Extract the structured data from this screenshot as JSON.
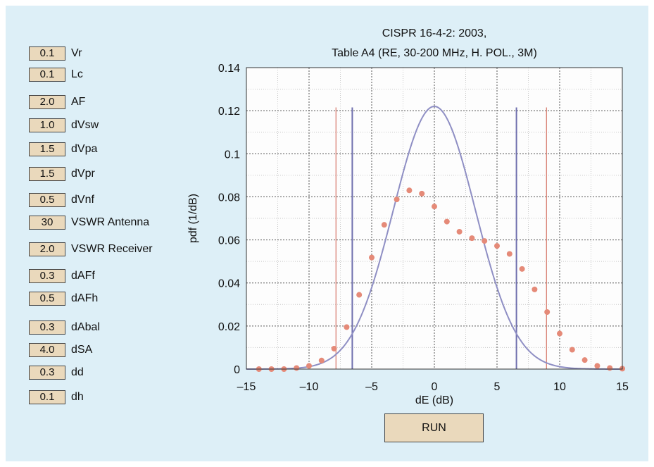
{
  "colors": {
    "panel_bg": "#ddeff7",
    "plot_bg": "#fdfdfd",
    "field_bg": "#ead9bc",
    "gaussian_curve": "#8f8fc4",
    "points": "#e58a78",
    "red_limits": "#d98275",
    "blue_limits": "#6f6fae"
  },
  "parameters": [
    {
      "value": "0.1",
      "label": "Vr"
    },
    {
      "value": "0.1",
      "label": "Lc"
    },
    {
      "value": "2.0",
      "label": "AF"
    },
    {
      "value": "1.0",
      "label": "dVsw"
    },
    {
      "value": "1.5",
      "label": "dVpa"
    },
    {
      "value": "1.5",
      "label": "dVpr"
    },
    {
      "value": "0.5",
      "label": "dVnf"
    },
    {
      "value": "30",
      "label": "VSWR Antenna"
    },
    {
      "value": "2.0",
      "label": "VSWR Receiver"
    },
    {
      "value": "0.3",
      "label": "dAFf"
    },
    {
      "value": "0.5",
      "label": "dAFh"
    },
    {
      "value": "0.3",
      "label": "dAbal"
    },
    {
      "value": "4.0",
      "label": "dSA"
    },
    {
      "value": "0.3",
      "label": "dd"
    },
    {
      "value": "0.1",
      "label": "dh"
    }
  ],
  "run_button": {
    "label": "RUN"
  },
  "chart_data": {
    "type": "scatter",
    "title": "CISPR 16-4-2: 2003,",
    "subtitle": "Table A4 (RE, 30-200 MHz, H. POL., 3M)",
    "xlabel": "dE (dB)",
    "ylabel": "pdf (1/dB)",
    "xlim": [
      -15,
      15
    ],
    "ylim": [
      0,
      0.14
    ],
    "xticks": [
      -15,
      -10,
      -5,
      0,
      5,
      10,
      15
    ],
    "xtick_labels": [
      "–15",
      "–10",
      "–5",
      "0",
      "5",
      "10",
      "15"
    ],
    "yticks": [
      0,
      0.02,
      0.04,
      0.06,
      0.08,
      0.1,
      0.12,
      0.14
    ],
    "ytick_labels": [
      "0",
      "0.02",
      "0.04",
      "0.06",
      "0.08",
      "0.1",
      "0.12",
      "0.14"
    ],
    "grid": true,
    "series": [
      {
        "kind": "points",
        "x": [
          -14,
          -13,
          -12,
          -11,
          -10,
          -9,
          -8,
          -7,
          -6,
          -5,
          -4,
          -3,
          -2,
          -1,
          0,
          1,
          2,
          3,
          4,
          5,
          6,
          7,
          8,
          9,
          10,
          11,
          12,
          13,
          14,
          15
        ],
        "y": [
          0.0,
          0.0,
          0.0,
          0.0005,
          0.0015,
          0.004,
          0.0095,
          0.0195,
          0.0345,
          0.0518,
          0.067,
          0.0788,
          0.083,
          0.0815,
          0.0755,
          0.0685,
          0.0638,
          0.0608,
          0.0595,
          0.0572,
          0.0535,
          0.0465,
          0.037,
          0.0265,
          0.0165,
          0.009,
          0.0042,
          0.0015,
          0.0005,
          0.0002
        ]
      },
      {
        "kind": "gaussian_curve",
        "mean": 0,
        "std": 3.27,
        "peak": 0.122,
        "x_range": [
          -15,
          15
        ]
      }
    ],
    "vertical_lines": [
      {
        "x": -7.85,
        "y_top": 0.1215,
        "color": "red"
      },
      {
        "x": 8.95,
        "y_top": 0.1215,
        "color": "red"
      },
      {
        "x": -6.55,
        "y_top": 0.1215,
        "color": "blue"
      },
      {
        "x": 6.55,
        "y_top": 0.1215,
        "color": "blue"
      }
    ]
  }
}
